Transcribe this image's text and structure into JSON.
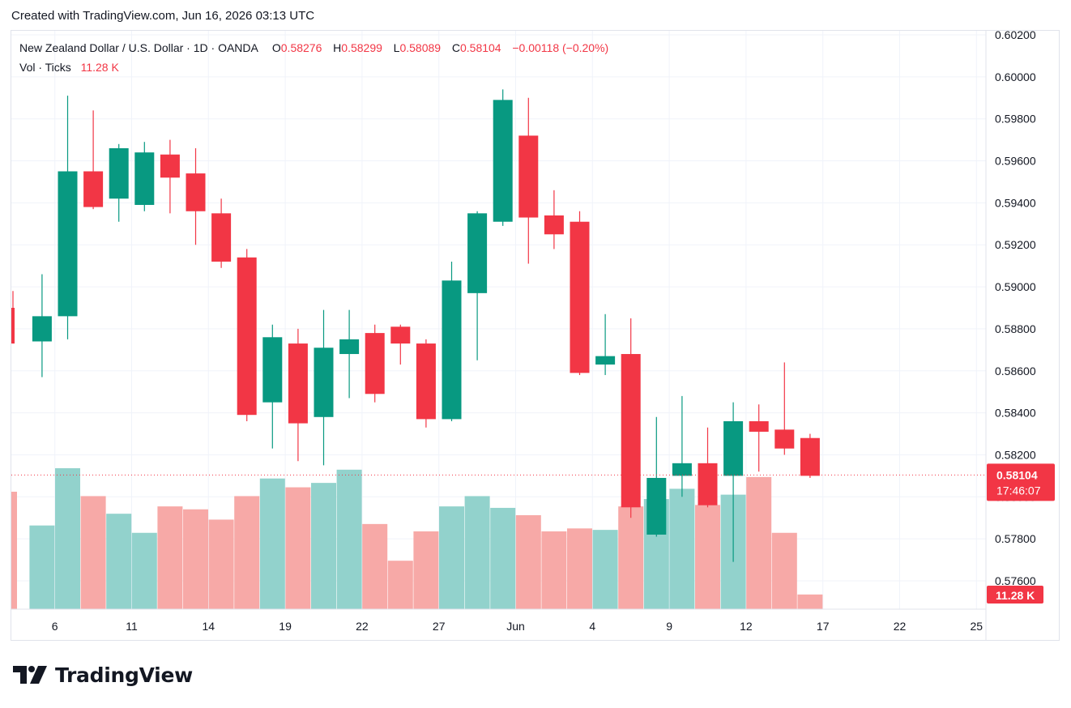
{
  "caption": "Created with TradingView.com, Jun 16, 2026 03:13 UTC",
  "brand": {
    "name": "TradingView"
  },
  "legend": {
    "symbol": "New Zealand Dollar / U.S. Dollar · 1D · OANDA",
    "o_label": "O",
    "o_value": "0.58276",
    "h_label": "H",
    "h_value": "0.58299",
    "l_label": "L",
    "l_value": "0.58089",
    "c_label": "C",
    "c_value": "0.58104",
    "change": "−0.00118 (−0.20%)",
    "vol_label": "Vol · Ticks",
    "vol_value": "11.28 K"
  },
  "badges": {
    "price": "0.58104",
    "countdown": "17:46:07",
    "volume": "11.28 K"
  },
  "colors": {
    "up": "#089981",
    "down": "#f23645",
    "vol_up": "#92d2cc",
    "vol_down": "#f7a9a7",
    "grid": "#f0f3fa",
    "text": "#131722"
  },
  "chart_data": {
    "type": "candlestick",
    "y_ticks": [
      "0.60200",
      "0.60000",
      "0.59800",
      "0.59600",
      "0.59400",
      "0.59200",
      "0.59000",
      "0.58800",
      "0.58600",
      "0.58400",
      "0.58200",
      "0.58000",
      "0.57800",
      "0.57600"
    ],
    "y_range": [
      0.5756,
      0.6021
    ],
    "x_ticks": [
      "6",
      "11",
      "14",
      "19",
      "22",
      "27",
      "Jun",
      "4",
      "9",
      "12",
      "17",
      "22",
      "25"
    ],
    "last_price": 0.58104,
    "candles": [
      {
        "o": 0.589,
        "h": 0.5898,
        "l": 0.5873,
        "c": 0.5873
      },
      {
        "o": 0.5874,
        "h": 0.5906,
        "l": 0.5857,
        "c": 0.5886
      },
      {
        "o": 0.5886,
        "h": 0.5991,
        "l": 0.5875,
        "c": 0.5955
      },
      {
        "o": 0.5955,
        "h": 0.5984,
        "l": 0.5937,
        "c": 0.5938
      },
      {
        "o": 0.5942,
        "h": 0.5968,
        "l": 0.5931,
        "c": 0.5966
      },
      {
        "o": 0.5939,
        "h": 0.5969,
        "l": 0.5936,
        "c": 0.5964
      },
      {
        "o": 0.5963,
        "h": 0.597,
        "l": 0.5935,
        "c": 0.5952
      },
      {
        "o": 0.5954,
        "h": 0.5966,
        "l": 0.592,
        "c": 0.5936
      },
      {
        "o": 0.5935,
        "h": 0.5942,
        "l": 0.5909,
        "c": 0.5912
      },
      {
        "o": 0.5914,
        "h": 0.5918,
        "l": 0.5836,
        "c": 0.5839
      },
      {
        "o": 0.5845,
        "h": 0.5882,
        "l": 0.5823,
        "c": 0.5876
      },
      {
        "o": 0.5873,
        "h": 0.588,
        "l": 0.5817,
        "c": 0.5835
      },
      {
        "o": 0.5838,
        "h": 0.5889,
        "l": 0.5815,
        "c": 0.5871
      },
      {
        "o": 0.5868,
        "h": 0.5889,
        "l": 0.5847,
        "c": 0.5875
      },
      {
        "o": 0.5878,
        "h": 0.5882,
        "l": 0.5845,
        "c": 0.5849
      },
      {
        "o": 0.5881,
        "h": 0.5882,
        "l": 0.5863,
        "c": 0.5873
      },
      {
        "o": 0.5873,
        "h": 0.5875,
        "l": 0.5833,
        "c": 0.5837
      },
      {
        "o": 0.5837,
        "h": 0.5912,
        "l": 0.5836,
        "c": 0.5903
      },
      {
        "o": 0.5897,
        "h": 0.5936,
        "l": 0.5865,
        "c": 0.5935
      },
      {
        "o": 0.5931,
        "h": 0.5994,
        "l": 0.5929,
        "c": 0.5989
      },
      {
        "o": 0.5972,
        "h": 0.599,
        "l": 0.5911,
        "c": 0.5933
      },
      {
        "o": 0.5934,
        "h": 0.5946,
        "l": 0.5918,
        "c": 0.5925
      },
      {
        "o": 0.5931,
        "h": 0.5936,
        "l": 0.5858,
        "c": 0.5859
      },
      {
        "o": 0.5863,
        "h": 0.5887,
        "l": 0.5858,
        "c": 0.5867
      },
      {
        "o": 0.5868,
        "h": 0.5885,
        "l": 0.579,
        "c": 0.5795
      },
      {
        "o": 0.5782,
        "h": 0.5838,
        "l": 0.5781,
        "c": 0.5809
      },
      {
        "o": 0.581,
        "h": 0.5848,
        "l": 0.58,
        "c": 0.5816
      },
      {
        "o": 0.5816,
        "h": 0.5833,
        "l": 0.5795,
        "c": 0.5796
      },
      {
        "o": 0.581,
        "h": 0.5845,
        "l": 0.5769,
        "c": 0.5836
      },
      {
        "o": 0.5836,
        "h": 0.5844,
        "l": 0.5812,
        "c": 0.5831
      },
      {
        "o": 0.5832,
        "h": 0.5864,
        "l": 0.582,
        "c": 0.5823
      },
      {
        "o": 0.5828,
        "h": 0.583,
        "l": 0.5809,
        "c": 0.581
      }
    ],
    "volume_range": [
      0,
      1
    ],
    "volume": [
      0.8,
      0.57,
      0.96,
      0.77,
      0.65,
      0.52,
      0.7,
      0.68,
      0.61,
      0.77,
      0.89,
      0.83,
      0.86,
      0.95,
      0.58,
      0.33,
      0.53,
      0.7,
      0.77,
      0.69,
      0.64,
      0.53,
      0.55,
      0.54,
      0.7,
      0.75,
      0.82,
      0.71,
      0.78,
      0.9,
      0.52,
      0.1
    ]
  }
}
